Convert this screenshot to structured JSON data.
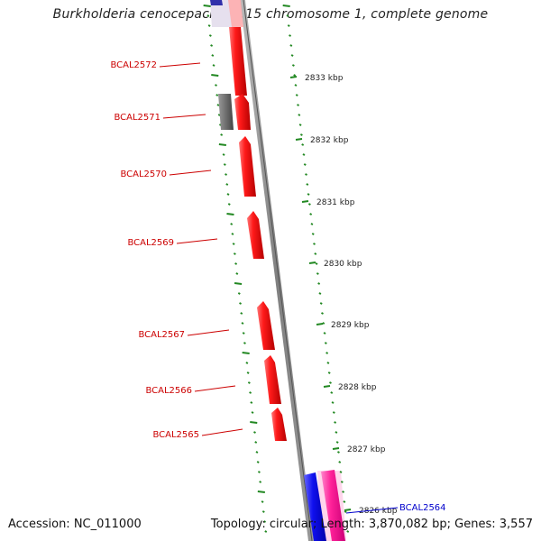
{
  "title": "Burkholderia cenocepacia J2315 chromosome 1, complete genome",
  "footer": {
    "accession": "Accession: NC_011000",
    "topology": "Topology: circular; Length: 3,870,082 bp; Genes: 3,557"
  },
  "colors": {
    "forward_gene": "#ee1111",
    "reverse_gene": "#1111ee",
    "pseudo_gene": "#666666",
    "rna_gene": "#ff22aa",
    "backbone": "#888888",
    "tick": "#228822",
    "gene_label": "#cc0000",
    "gene_label_alt": "#0000cc"
  },
  "scale": {
    "ticks": [
      "2833 kbp",
      "2832 kbp",
      "2831 kbp",
      "2830 kbp",
      "2829 kbp",
      "2828 kbp",
      "2827 kbp",
      "2826 kbp"
    ]
  },
  "genes": [
    {
      "label": "BCAL2572",
      "strand": "forward",
      "type": "cds"
    },
    {
      "label": "BCAL2571",
      "strand": "forward",
      "type": "cds"
    },
    {
      "label": "BCAL2570",
      "strand": "forward",
      "type": "cds"
    },
    {
      "label": "BCAL2569",
      "strand": "forward",
      "type": "cds"
    },
    {
      "label": "BCAL2567",
      "strand": "forward",
      "type": "cds"
    },
    {
      "label": "BCAL2566",
      "strand": "forward",
      "type": "cds"
    },
    {
      "label": "BCAL2565",
      "strand": "forward",
      "type": "cds"
    },
    {
      "label": "BCAL2564",
      "strand": "reverse",
      "type": "cds"
    }
  ]
}
